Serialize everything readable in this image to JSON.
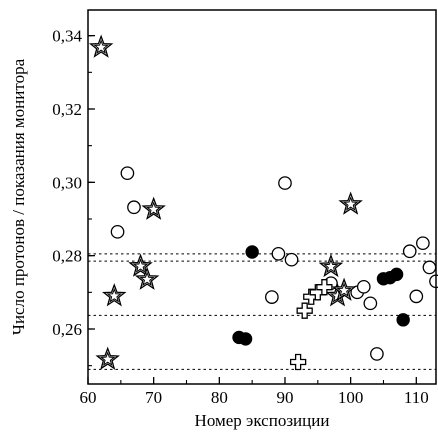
{
  "chart_data": {
    "type": "scatter",
    "title": "",
    "xlabel": "Номер экспозиции",
    "ylabel": "Число протонов / показания монитора",
    "xlim": [
      60,
      113
    ],
    "ylim": [
      0.245,
      0.347
    ],
    "grid": false,
    "x_ticks": [
      {
        "value": 60,
        "label": "60"
      },
      {
        "value": 70,
        "label": "70"
      },
      {
        "value": 80,
        "label": "80"
      },
      {
        "value": 90,
        "label": "90"
      },
      {
        "value": 100,
        "label": "100"
      },
      {
        "value": 110,
        "label": "110"
      }
    ],
    "y_ticks": [
      {
        "value": 0.26,
        "label": "0,26"
      },
      {
        "value": 0.28,
        "label": "0,28"
      },
      {
        "value": 0.3,
        "label": "0,30"
      },
      {
        "value": 0.32,
        "label": "0,32"
      },
      {
        "value": 0.34,
        "label": "0,34"
      }
    ],
    "reference_lines": [
      0.2805,
      0.2785,
      0.2637,
      0.249
    ],
    "series": [
      {
        "marker": "open-circle",
        "points": [
          [
            64.5,
            0.2865
          ],
          [
            66.0,
            0.3025
          ],
          [
            67.0,
            0.2932
          ],
          [
            88.0,
            0.2687
          ],
          [
            89.0,
            0.2805
          ],
          [
            90.0,
            0.2998
          ],
          [
            91.0,
            0.2789
          ],
          [
            97.0,
            0.2725
          ],
          [
            101.0,
            0.27
          ],
          [
            102.0,
            0.2715
          ],
          [
            103.0,
            0.267
          ],
          [
            104.0,
            0.2532
          ],
          [
            109.0,
            0.2812
          ],
          [
            110.0,
            0.2689
          ],
          [
            111.0,
            0.2834
          ],
          [
            112.0,
            0.2768
          ],
          [
            113.0,
            0.273
          ]
        ]
      },
      {
        "marker": "filled-circle",
        "points": [
          [
            83.0,
            0.2577
          ],
          [
            84.0,
            0.2573
          ],
          [
            85.0,
            0.281
          ],
          [
            105.0,
            0.2737
          ],
          [
            106.0,
            0.274
          ],
          [
            107.0,
            0.2749
          ],
          [
            108.0,
            0.2625
          ]
        ]
      },
      {
        "marker": "star",
        "points": [
          [
            62.0,
            0.3368
          ],
          [
            63.0,
            0.2517
          ],
          [
            64.0,
            0.269
          ],
          [
            68.0,
            0.2771
          ],
          [
            69.0,
            0.2735
          ],
          [
            70.0,
            0.2926
          ],
          [
            97.0,
            0.277
          ],
          [
            98.0,
            0.269
          ],
          [
            99.0,
            0.2705
          ],
          [
            100.0,
            0.294
          ]
        ]
      },
      {
        "marker": "cross",
        "points": [
          [
            92.0,
            0.251
          ],
          [
            93.0,
            0.265
          ],
          [
            94.0,
            0.2688
          ],
          [
            95.0,
            0.27
          ],
          [
            96.0,
            0.2714
          ]
        ]
      }
    ]
  }
}
